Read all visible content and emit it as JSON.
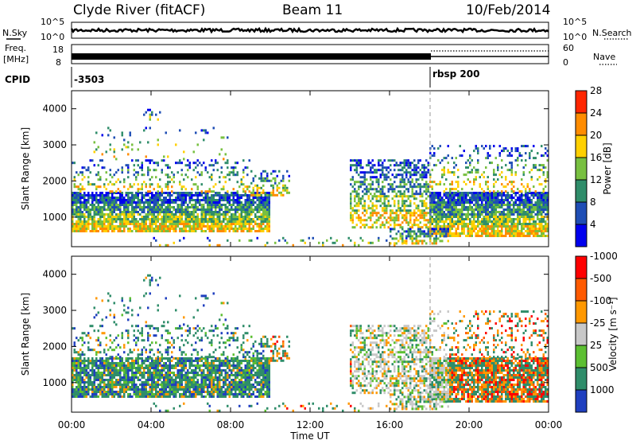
{
  "header": {
    "station": "Clyde River (fitACF)",
    "beam": "Beam 11",
    "date": "10/Feb/2014"
  },
  "nsky_panel": {
    "left_label": "N.Sky",
    "right_label": "N.Search",
    "left_ticks": [
      "10^5",
      "10^0"
    ],
    "right_ticks": [
      "10^5",
      "10^0"
    ]
  },
  "freq_panel": {
    "left_label_line1": "Freq.",
    "left_label_line2": "[MHz]",
    "left_ticks": [
      "18",
      "8"
    ],
    "right_ticks": [
      "60",
      "0"
    ],
    "right_label": "Nave"
  },
  "cpid_panel": {
    "label": "CPID",
    "segments": [
      {
        "text": "-3503",
        "start_hour": 0
      },
      {
        "text": "rbsp 200",
        "start_hour": 18
      }
    ]
  },
  "x_axis": {
    "tick_labels": [
      "00:00",
      "04:00",
      "08:00",
      "12:00",
      "16:00",
      "20:00",
      "00:00"
    ],
    "title": "Time UT",
    "range_hours": [
      0,
      24
    ]
  },
  "chart_data": [
    {
      "type": "heatmap",
      "name": "power",
      "ylabel": "Slant Range [km]",
      "y_tick_labels": [
        "1000",
        "2000",
        "3000",
        "4000"
      ],
      "ylim_km": [
        180,
        4500
      ],
      "colorbar": {
        "label": "Power [dB]",
        "tick_labels": [
          "4",
          "8",
          "12",
          "16",
          "20",
          "24",
          "28"
        ],
        "colors": [
          "#0000ee",
          "#1f4eb5",
          "#2f8d6a",
          "#78c040",
          "#ffd000",
          "#ff8c00",
          "#ff2600"
        ]
      }
    },
    {
      "type": "heatmap",
      "name": "velocity",
      "ylabel": "Slant Range [km]",
      "y_tick_labels": [
        "1000",
        "2000",
        "3000",
        "4000"
      ],
      "ylim_km": [
        180,
        4500
      ],
      "colorbar": {
        "label": "Velocity [m s⁻¹]",
        "tick_labels": [
          "1000",
          "500",
          "25",
          "-25",
          "-100",
          "-500",
          "-1000"
        ],
        "colors": [
          "#1f3fbf",
          "#2f8d6a",
          "#5cbf32",
          "#c8c8c8",
          "#ff9800",
          "#ff5a00",
          "#ff0000"
        ]
      }
    }
  ]
}
